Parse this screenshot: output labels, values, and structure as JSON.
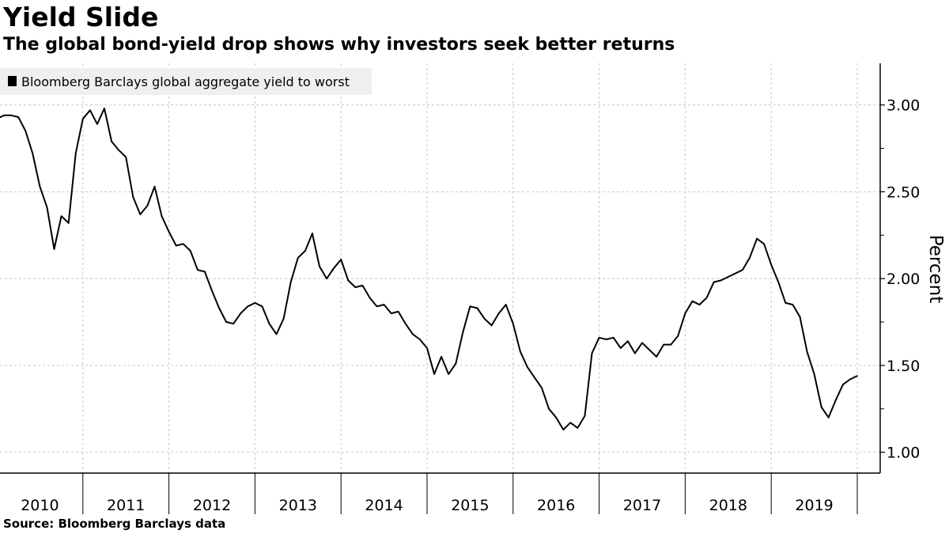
{
  "header": {
    "title": "Yield Slide",
    "subtitle": "The global bond-yield drop shows why investors seek better returns"
  },
  "footer": {
    "source": "Source: Bloomberg Barclays data"
  },
  "chart_data": {
    "type": "line",
    "title": "Yield Slide",
    "subtitle": "The global bond-yield drop shows why investors seek better returns",
    "xlabel": "",
    "ylabel": "Percent",
    "ylim": [
      0.88,
      3.24
    ],
    "yticks": [
      "1.00",
      "1.50",
      "2.00",
      "2.50",
      "3.00"
    ],
    "xticks": [
      "2010",
      "2011",
      "2012",
      "2013",
      "2014",
      "2015",
      "2016",
      "2017",
      "2018",
      "2019"
    ],
    "grid": true,
    "legend_position": "top-left",
    "y_axis_side": "right",
    "line_color": "#000000",
    "series": [
      {
        "name": "Bloomberg Barclays global aggregate yield to worst",
        "dates": [
          "2010-01",
          "2010-02",
          "2010-03",
          "2010-04",
          "2010-05",
          "2010-06",
          "2010-07",
          "2010-08",
          "2010-09",
          "2010-10",
          "2010-11",
          "2010-12",
          "2011-01",
          "2011-02",
          "2011-03",
          "2011-04",
          "2011-05",
          "2011-06",
          "2011-07",
          "2011-08",
          "2011-09",
          "2011-10",
          "2011-11",
          "2011-12",
          "2012-01",
          "2012-02",
          "2012-03",
          "2012-04",
          "2012-05",
          "2012-06",
          "2012-07",
          "2012-08",
          "2012-09",
          "2012-10",
          "2012-11",
          "2012-12",
          "2013-01",
          "2013-02",
          "2013-03",
          "2013-04",
          "2013-05",
          "2013-06",
          "2013-07",
          "2013-08",
          "2013-09",
          "2013-10",
          "2013-11",
          "2013-12",
          "2014-01",
          "2014-02",
          "2014-03",
          "2014-04",
          "2014-05",
          "2014-06",
          "2014-07",
          "2014-08",
          "2014-09",
          "2014-10",
          "2014-11",
          "2014-12",
          "2015-01",
          "2015-02",
          "2015-03",
          "2015-04",
          "2015-05",
          "2015-06",
          "2015-07",
          "2015-08",
          "2015-09",
          "2015-10",
          "2015-11",
          "2015-12",
          "2016-01",
          "2016-02",
          "2016-03",
          "2016-04",
          "2016-05",
          "2016-06",
          "2016-07",
          "2016-08",
          "2016-09",
          "2016-10",
          "2016-11",
          "2016-12",
          "2017-01",
          "2017-02",
          "2017-03",
          "2017-04",
          "2017-05",
          "2017-06",
          "2017-07",
          "2017-08",
          "2017-09",
          "2017-10",
          "2017-11",
          "2017-12",
          "2018-01",
          "2018-02",
          "2018-03",
          "2018-04",
          "2018-05",
          "2018-06",
          "2018-07",
          "2018-08",
          "2018-09",
          "2018-10",
          "2018-11",
          "2018-12",
          "2019-01",
          "2019-02",
          "2019-03",
          "2019-04",
          "2019-05",
          "2019-06",
          "2019-07",
          "2019-08",
          "2019-09",
          "2019-10",
          "2019-11",
          "2019-12",
          "2020-01"
        ],
        "values": [
          2.92,
          2.94,
          2.94,
          2.93,
          2.85,
          2.72,
          2.53,
          2.41,
          2.17,
          2.36,
          2.32,
          2.72,
          2.92,
          2.97,
          2.89,
          2.98,
          2.79,
          2.74,
          2.7,
          2.47,
          2.37,
          2.42,
          2.53,
          2.36,
          2.27,
          2.19,
          2.2,
          2.16,
          2.05,
          2.04,
          1.93,
          1.83,
          1.75,
          1.74,
          1.8,
          1.84,
          1.86,
          1.84,
          1.74,
          1.68,
          1.77,
          1.98,
          2.12,
          2.16,
          2.26,
          2.07,
          2.0,
          2.06,
          2.11,
          1.99,
          1.95,
          1.96,
          1.89,
          1.84,
          1.85,
          1.8,
          1.81,
          1.74,
          1.68,
          1.65,
          1.6,
          1.45,
          1.55,
          1.45,
          1.51,
          1.69,
          1.84,
          1.83,
          1.77,
          1.73,
          1.8,
          1.85,
          1.74,
          1.58,
          1.49,
          1.43,
          1.37,
          1.25,
          1.2,
          1.13,
          1.17,
          1.14,
          1.21,
          1.57,
          1.66,
          1.65,
          1.66,
          1.6,
          1.64,
          1.57,
          1.63,
          1.59,
          1.55,
          1.62,
          1.62,
          1.67,
          1.8,
          1.87,
          1.85,
          1.89,
          1.98,
          1.99,
          2.01,
          2.03,
          2.05,
          2.12,
          2.23,
          2.2,
          2.08,
          1.98,
          1.86,
          1.85,
          1.78,
          1.58,
          1.45,
          1.26,
          1.2,
          1.3,
          1.39,
          1.42,
          1.44
        ]
      }
    ]
  }
}
